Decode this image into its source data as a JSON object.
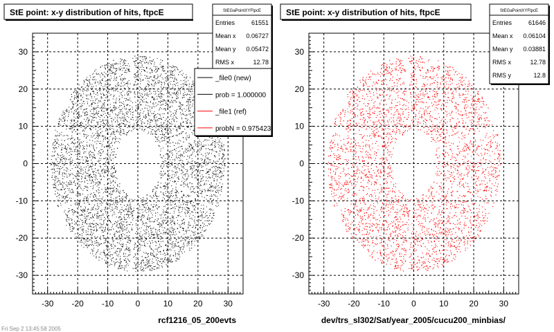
{
  "chart_data": [
    {
      "type": "scatter",
      "title": "StE point: x-y distribution of hits, ftpcE",
      "xlabel": "rcf1216_05_200evts",
      "ylabel": "",
      "xlim": [
        -35,
        35
      ],
      "ylim": [
        -35,
        35
      ],
      "xticks": [
        -30,
        -20,
        -10,
        0,
        10,
        20,
        30
      ],
      "yticks": [
        -30,
        -20,
        -10,
        0,
        10,
        20,
        30
      ],
      "grid": true,
      "point_color": "#000000",
      "distribution": {
        "shape": "annulus",
        "inner_radius": 8,
        "outer_radius": 29
      },
      "stats": {
        "title": "StEGaPointXYFtpcE",
        "rows": [
          {
            "label": "Entries",
            "value": "61551"
          },
          {
            "label": "Mean x",
            "value": "0.06727"
          },
          {
            "label": "Mean y",
            "value": "0.05472"
          },
          {
            "label": "RMS x",
            "value": "12.78"
          }
        ]
      },
      "legend": {
        "placement": "top-right",
        "entries": [
          {
            "label": "_file0 (new)",
            "color": "#000000"
          },
          {
            "label": "prob = 1.000000",
            "color": "#000000"
          },
          {
            "label": "_file1 (ref)",
            "color": "#ff0000"
          },
          {
            "label": "probN = 0.975423",
            "color": "#ff0000"
          }
        ]
      }
    },
    {
      "type": "scatter",
      "title": "StE point: x-y distribution of hits, ftpcE",
      "xlabel": "dev/trs_sl302/Sat/year_2005/cucu200_minbias/",
      "ylabel": "",
      "xlim": [
        -35,
        35
      ],
      "ylim": [
        -35,
        35
      ],
      "xticks": [
        -30,
        -20,
        -10,
        0,
        10,
        20,
        30
      ],
      "yticks": [
        -30,
        -20,
        -10,
        0,
        10,
        20,
        30
      ],
      "grid": true,
      "point_color": "#ff0000",
      "distribution": {
        "shape": "annulus",
        "inner_radius": 8,
        "outer_radius": 29
      },
      "stats": {
        "title": "StEGaPointXYFtpcE",
        "rows": [
          {
            "label": "Entries",
            "value": "61646"
          },
          {
            "label": "Mean x",
            "value": "0.06104"
          },
          {
            "label": "Mean y",
            "value": "0.03881"
          },
          {
            "label": "RMS x",
            "value": "12.78"
          },
          {
            "label": "RMS y",
            "value": "12.8"
          }
        ]
      }
    }
  ],
  "footer_text": "Fri Sep 2 13:45:58 2005"
}
